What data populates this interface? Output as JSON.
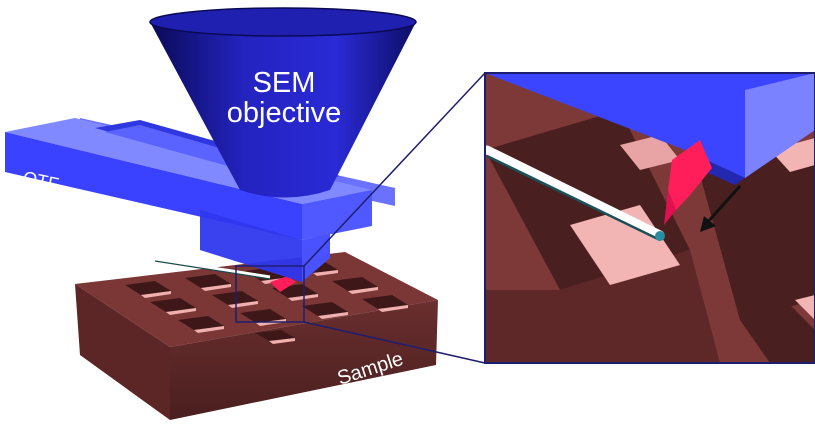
{
  "labels": {
    "objective_line1": "SEM",
    "objective_line2": "objective",
    "qtf": "QTF",
    "sample": "Sample"
  },
  "colors": {
    "objective_blue": "#2525c8",
    "objective_dark": "#0c0c5a",
    "qtf_blue": "#3b44ff",
    "qtf_light": "#7f86ff",
    "sample_brown": "#7a3535",
    "sample_dark": "#4a1e1e",
    "sample_pink": "#f3b4b4",
    "tip_red": "#ff1e5a",
    "inset_border": "#1e1e6e"
  }
}
